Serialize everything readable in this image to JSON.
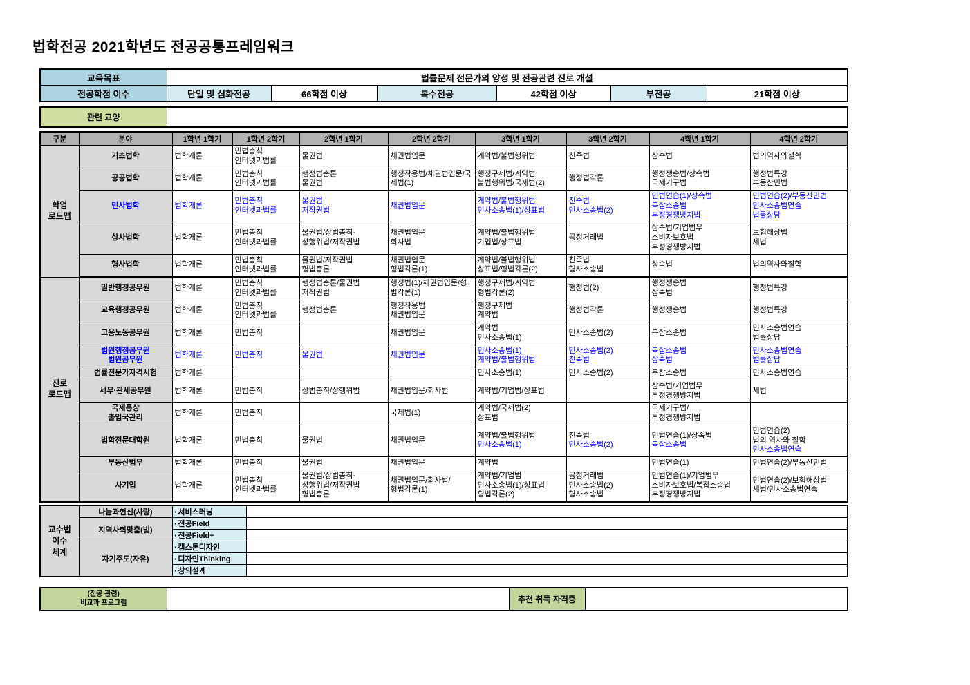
{
  "title": "법학전공  2021학년도 전공공통프레임워크",
  "info": {
    "goal_label": "교육목표",
    "goal_value": "법률문제 전문가의 양성 및 전공관련 진로 개설",
    "credits_label": "전공학점 이수",
    "credit_items": [
      {
        "label": "단일 및 심화전공",
        "value": "66학점 이상"
      },
      {
        "label": "복수전공",
        "value": "42학점 이상"
      },
      {
        "label": "부전공",
        "value": "21학점 이상"
      }
    ],
    "liberal_label": "관련 교양",
    "liberal_value": ""
  },
  "curriculum": {
    "headers": [
      "구분",
      "분야",
      "1학년 1학기",
      "1학년 2학기",
      "2학년 1학기",
      "2학년 2학기",
      "3학년 1학기",
      "3학년 2학기",
      "4학년 1학기",
      "4학년 2학기"
    ],
    "groups": [
      {
        "label_lines": [
          "학업",
          "로드맵"
        ],
        "rows": [
          {
            "field_lines": [
              "기초법학"
            ],
            "blue": false,
            "cells": [
              [
                "법학개론"
              ],
              [
                "민법총칙",
                "인터넷과법률"
              ],
              [
                "물권법"
              ],
              [
                "채권법입문"
              ],
              [
                "계약법/불법행위법"
              ],
              [
                "친족법"
              ],
              [
                "상속법"
              ],
              [
                "법의역사와철학"
              ]
            ]
          },
          {
            "field_lines": [
              "공공법학"
            ],
            "blue": false,
            "cells": [
              [
                "법학개론"
              ],
              [
                "민법총칙",
                "인터넷과법률"
              ],
              [
                "행정법총론",
                "물권법"
              ],
              [
                "행정작용법/채권법입문/국제법(1)"
              ],
              [
                "행정구제법/계약법",
                "불법행위법/국제법(2)"
              ],
              [
                "행정법각론"
              ],
              [
                "행정쟁송법/상속법",
                "국제기구법"
              ],
              [
                "행정법특강",
                "부동산민법"
              ]
            ]
          },
          {
            "field_lines": [
              "민사법학"
            ],
            "blue": true,
            "cells": [
              [
                "법학개론"
              ],
              [
                "민법총칙",
                "인터넷과법률"
              ],
              [
                "물권법",
                "저작권법"
              ],
              [
                "채권법입문"
              ],
              [
                "계약법/불법행위법",
                "민사소송법(1)/상표법"
              ],
              [
                "친족법",
                "민사소송법(2)"
              ],
              [
                "민법연습(1)/상속법",
                "복잡소송법",
                "부정경쟁방지법"
              ],
              [
                "민법연습(2)/부동산민법",
                "민사소송법연습",
                "법률상담"
              ]
            ]
          },
          {
            "field_lines": [
              "상사법학"
            ],
            "blue": false,
            "cells": [
              [
                "법학개론"
              ],
              [
                "민법총칙",
                "인터넷과법률"
              ],
              [
                "물권법/상법총칙·",
                "상행위법/저작권법"
              ],
              [
                "채권법입문",
                "회사법"
              ],
              [
                "계약법/불법행위법",
                "기업법/상표법"
              ],
              [
                "공정거래법"
              ],
              [
                "상속법/기업법무",
                "소비자보호법",
                "부정경쟁방지법"
              ],
              [
                "보험해상법",
                "세법"
              ]
            ]
          },
          {
            "field_lines": [
              "형사법학"
            ],
            "blue": false,
            "cells": [
              [
                "법학개론"
              ],
              [
                "민법총칙",
                "인터넷과법률"
              ],
              [
                "물권법/저작권법",
                "형법총론"
              ],
              [
                "채권법입문",
                "형법각론(1)"
              ],
              [
                "계약법/불법행위법",
                "상표법/형법각론(2)"
              ],
              [
                "친족법",
                "형사소송법"
              ],
              [
                "상속법"
              ],
              [
                "법의역사와철학"
              ]
            ]
          }
        ]
      },
      {
        "label_lines": [
          "진로",
          "로드맵"
        ],
        "rows": [
          {
            "field_lines": [
              "일반행정공무원"
            ],
            "blue": false,
            "cells": [
              [
                "법학개론"
              ],
              [
                "민법총칙",
                "인터넷과법률"
              ],
              [
                "행정법총론/물권법",
                "저작권법"
              ],
              [
                "행정법(1)/채권법입문/형법각론(1)"
              ],
              [
                "행정구제법/계약법",
                "형법각론(2)"
              ],
              [
                "행정법(2)"
              ],
              [
                "행정쟁송법",
                "상속법"
              ],
              [
                "행정법특강"
              ]
            ]
          },
          {
            "field_lines": [
              "교육행정공무원"
            ],
            "blue": false,
            "cells": [
              [
                "법학개론"
              ],
              [
                "민법총칙",
                "인터넷과법률"
              ],
              [
                "행정법총론"
              ],
              [
                "행정작용법",
                "채권법입문"
              ],
              [
                "행정구제법",
                "계약법"
              ],
              [
                "행정법각론"
              ],
              [
                "행정쟁송법"
              ],
              [
                "행정법특강"
              ]
            ]
          },
          {
            "field_lines": [
              "고용노동공무원"
            ],
            "blue": false,
            "cells": [
              [
                "법학개론"
              ],
              [
                "민법총칙"
              ],
              [],
              [
                "채권법입문"
              ],
              [
                "계약법",
                "민사소송법(1)"
              ],
              [
                "민사소송법(2)"
              ],
              [
                "복잡소송법"
              ],
              [
                "민사소송법연습",
                "법률상담"
              ]
            ]
          },
          {
            "field_lines": [
              "법원행정공무원",
              "법원공무원"
            ],
            "blue": true,
            "cells": [
              [
                "법학개론"
              ],
              [
                "민법총칙"
              ],
              [
                "물권법"
              ],
              [
                "채권법입문"
              ],
              [
                "민사소송법(1)",
                "계약법/불법행위법"
              ],
              [
                "민사소송법(2)",
                "친족법"
              ],
              [
                "복잡소송법",
                "상속법"
              ],
              [
                "민사소송법연습",
                "법률상담"
              ]
            ]
          },
          {
            "field_lines": [
              "법률전문가자격시험"
            ],
            "blue": false,
            "cells": [
              [
                "법학개론"
              ],
              [],
              [],
              [],
              [
                "민사소송법(1)"
              ],
              [
                "민사소송법(2)"
              ],
              [
                "복잡소송법"
              ],
              [
                "민사소송법연습"
              ]
            ]
          },
          {
            "field_lines": [
              "세무·관세공무원"
            ],
            "blue": false,
            "cells": [
              [
                "법학개론"
              ],
              [
                "민법총칙"
              ],
              [
                "상법총칙/상행위법"
              ],
              [
                "채권법입문/회사법"
              ],
              [
                "계약법/기업법/상표법"
              ],
              [],
              [
                "상속법/기업법무",
                "부정경쟁방지법"
              ],
              [
                "세법"
              ]
            ]
          },
          {
            "field_lines": [
              "국제통상",
              "출입국관리"
            ],
            "blue": false,
            "cells": [
              [
                "법학개론"
              ],
              [
                "민법총칙"
              ],
              [],
              [
                "국제법(1)"
              ],
              [
                "계약법/국제법(2)",
                "상표법"
              ],
              [],
              [
                "국제기구법/",
                "부정경쟁방지법"
              ],
              []
            ]
          },
          {
            "field_lines": [
              "법학전문대학원"
            ],
            "blue": false,
            "cells": [
              [
                "법학개론"
              ],
              [
                "민법총칙"
              ],
              [
                "물권법"
              ],
              [
                "채권법입문"
              ],
              [
                "계약법/불법행위법",
                {
                  "t": "민사소송법(1)",
                  "blue": true
                }
              ],
              [
                "친족법",
                {
                  "t": "민사소송법(2)",
                  "blue": true
                }
              ],
              [
                "민법연습(1)/상속법",
                {
                  "t": "복잡소송법",
                  "blue": true
                }
              ],
              [
                "민법연습(2)",
                "법의 역사와 철학",
                {
                  "t": "민사소송법연습",
                  "blue": true
                }
              ]
            ]
          },
          {
            "field_lines": [
              "부동산법무"
            ],
            "blue": false,
            "cells": [
              [
                "법학개론"
              ],
              [
                "민법총칙"
              ],
              [
                "물권법"
              ],
              [
                "채권법입문"
              ],
              [
                "계약법"
              ],
              [],
              [
                "민법연습(1)"
              ],
              [
                "민법연습(2)/부동산민법"
              ]
            ]
          },
          {
            "field_lines": [
              "사기업"
            ],
            "blue": false,
            "cells": [
              [
                "법학개론"
              ],
              [
                "민법총칙",
                "인터넷과법률"
              ],
              [
                "물권법/상법총칙·",
                "상행위법/저작권법",
                "형법총론"
              ],
              [
                "채권법입문/회사법/",
                "형법각론(1)"
              ],
              [
                "계약법/기업법",
                "민사소송법(1)/상표법",
                "형법각론(2)"
              ],
              [
                "공정거래법",
                "민사소송법(2)",
                "형사소송법"
              ],
              [
                "민법연습(1)/기업법무",
                "소비자보호법/복잡소송법",
                "부정경쟁방지법"
              ],
              [
                "민법연습(2)/보험해상법",
                "세법/민사소송법연습"
              ]
            ]
          }
        ]
      }
    ]
  },
  "pedagogy": {
    "side_label_lines": [
      "교수법",
      "이수",
      "체계"
    ],
    "bullet": "▪",
    "groups": [
      {
        "label": "나눔과헌신(사랑)",
        "items": [
          "서비스러닝"
        ]
      },
      {
        "label": "지역사회맞춤(빛)",
        "items": [
          "전공Field",
          "전공Field+"
        ]
      },
      {
        "label": "자기주도(자유)",
        "items": [
          "캡스톤디자인",
          "디자인Thinking",
          "창의설계"
        ]
      }
    ]
  },
  "extras": {
    "program_label_lines": [
      "(전공 관련)",
      "비교과 프로그램"
    ],
    "program_value": "",
    "cert_label": "추천 취득 자격증",
    "cert_value": ""
  },
  "colors": {
    "header_teal": "#abd5e0",
    "sub_teal": "#d7ecf2",
    "liberal_green": "#cdde9f",
    "extras_green": "#c3d69b",
    "header_gray": "#b1b1b1",
    "cell_gray": "#d9d9d9",
    "item_cyan": "#d9eef3",
    "blue_text": "#0000ff"
  }
}
